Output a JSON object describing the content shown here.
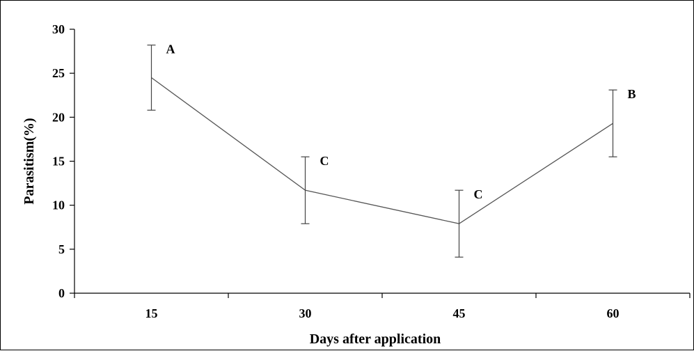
{
  "chart_data": {
    "type": "line",
    "title": "",
    "xlabel": "Days after application",
    "ylabel": "Parasitism(%)",
    "x": [
      "15",
      "30",
      "45",
      "60"
    ],
    "ylim": [
      0,
      30
    ],
    "yticks": [
      0,
      5,
      10,
      15,
      20,
      25,
      30
    ],
    "grid": false,
    "legend": "none",
    "series": [
      {
        "values": [
          24.5,
          11.7,
          7.9,
          19.3
        ],
        "error": [
          3.7,
          3.8,
          3.8,
          3.8
        ],
        "labels": [
          "A",
          "C",
          "C",
          "B"
        ],
        "color": "#555555"
      }
    ]
  }
}
